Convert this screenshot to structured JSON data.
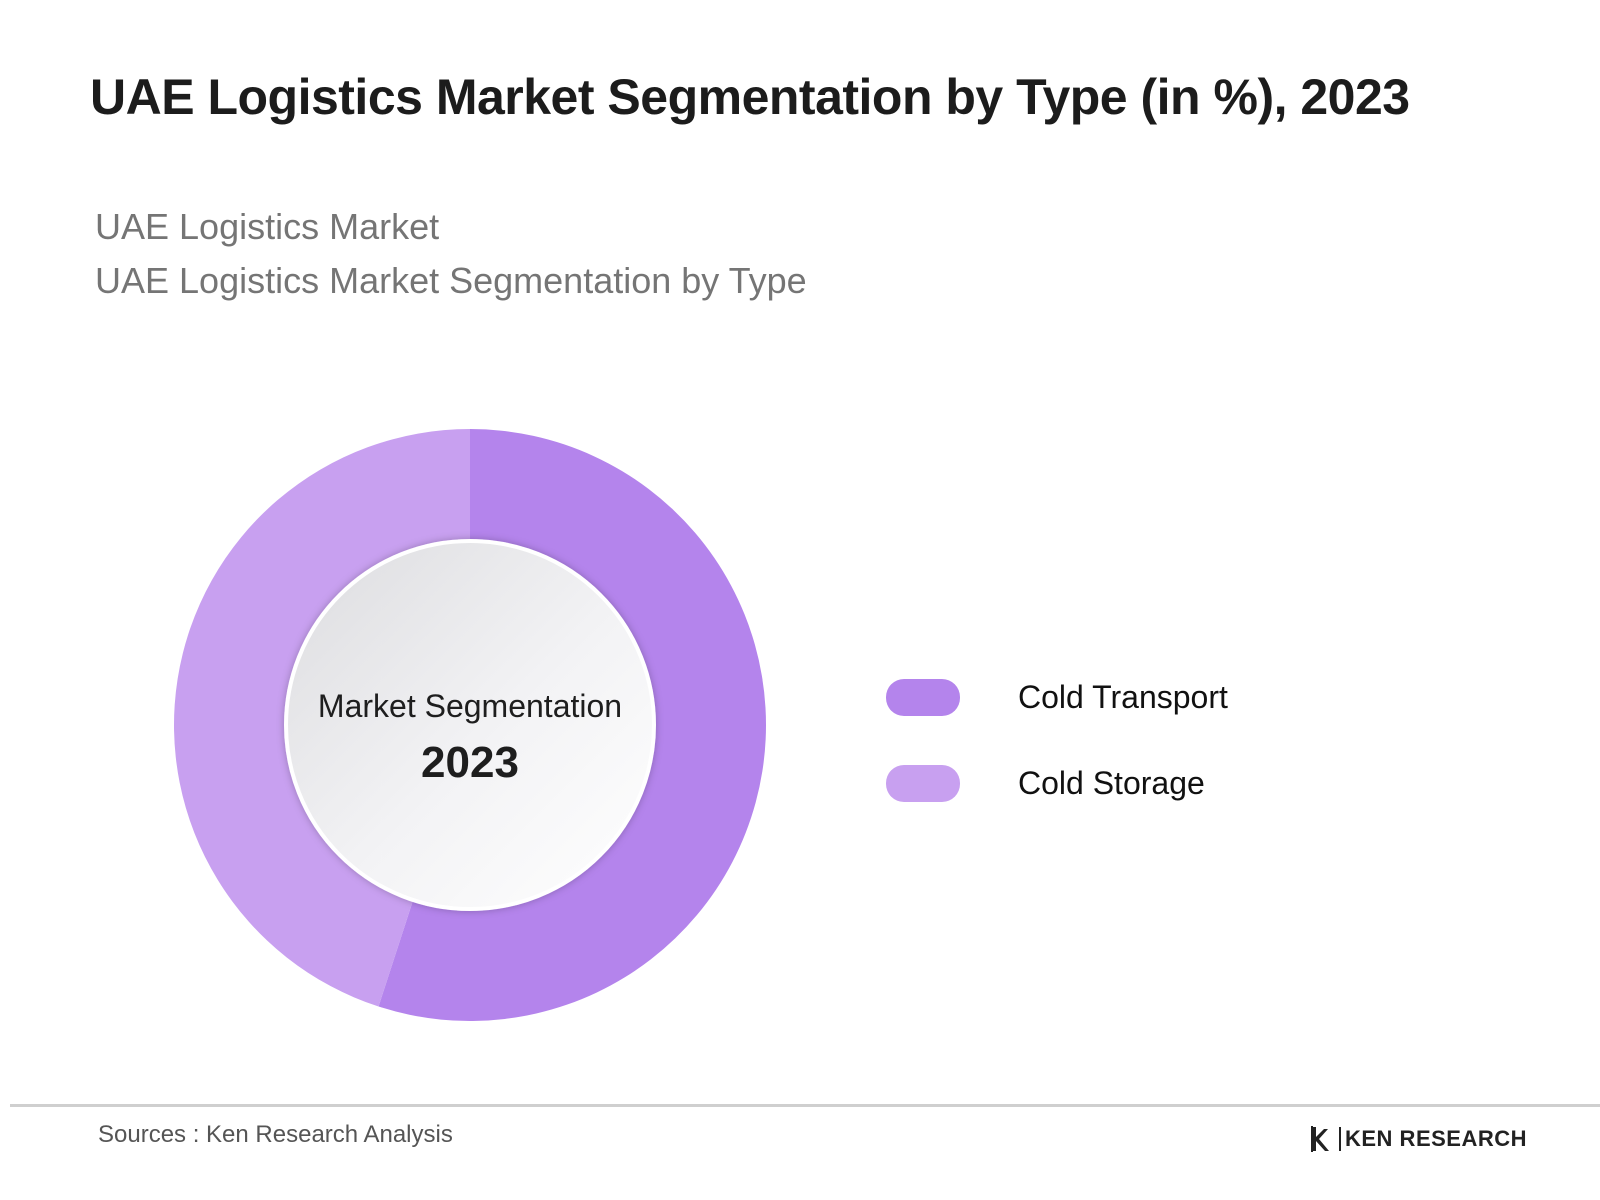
{
  "header": {
    "title": "UAE Logistics Market Segmentation by Type  (in %), 2023",
    "subtitle_line1": "UAE Logistics Market",
    "subtitle_line2": "UAE Logistics Market Segmentation by Type"
  },
  "chart_data": {
    "type": "pie",
    "title": "UAE Logistics Market Segmentation by Type  (in %), 2023",
    "center_text": [
      "Market Segmentation",
      "2023"
    ],
    "categories": [
      "Cold Transport",
      "Cold Storage"
    ],
    "values": [
      55,
      45
    ],
    "colors": [
      "#b484ec",
      "#c8a0f0"
    ],
    "legend_position": "right"
  },
  "footer": {
    "source": "Sources : Ken Research Analysis",
    "brand": "KEN RESEARCH"
  }
}
